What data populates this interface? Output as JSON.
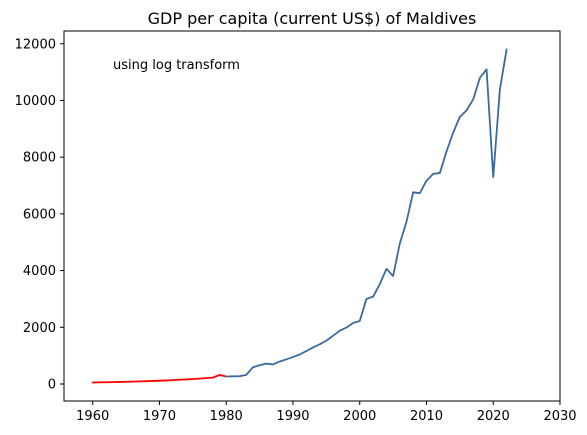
{
  "chart_data": {
    "type": "line",
    "title": "GDP per capita (current US$) of Maldives",
    "annotation": "using log transform",
    "xlabel": "",
    "ylabel": "",
    "xlim": [
      1955.7,
      2030
    ],
    "ylim": [
      -600,
      12450
    ],
    "x_ticks": [
      1960,
      1970,
      1980,
      1990,
      2000,
      2010,
      2020,
      2030
    ],
    "y_ticks": [
      0,
      2000,
      4000,
      6000,
      8000,
      10000,
      12000
    ],
    "grid": false,
    "legend": "none",
    "series": [
      {
        "color": "#ff0000",
        "points": [
          [
            1960,
            52
          ],
          [
            1961,
            56
          ],
          [
            1962,
            61
          ],
          [
            1963,
            66
          ],
          [
            1964,
            72
          ],
          [
            1965,
            78
          ],
          [
            1966,
            84
          ],
          [
            1967,
            91
          ],
          [
            1968,
            99
          ],
          [
            1969,
            107
          ],
          [
            1970,
            116
          ],
          [
            1971,
            126
          ],
          [
            1972,
            137
          ],
          [
            1973,
            149
          ],
          [
            1974,
            161
          ],
          [
            1975,
            175
          ],
          [
            1976,
            190
          ],
          [
            1977,
            206
          ],
          [
            1978,
            224
          ],
          [
            1979,
            320
          ],
          [
            1980,
            265
          ]
        ]
      },
      {
        "color": "#3a6aa0",
        "points": [
          [
            1980,
            265
          ],
          [
            1981,
            270
          ],
          [
            1982,
            275
          ],
          [
            1983,
            320
          ],
          [
            1984,
            590
          ],
          [
            1985,
            660
          ],
          [
            1986,
            720
          ],
          [
            1987,
            690
          ],
          [
            1988,
            790
          ],
          [
            1989,
            870
          ],
          [
            1990,
            950
          ],
          [
            1991,
            1040
          ],
          [
            1992,
            1160
          ],
          [
            1993,
            1290
          ],
          [
            1994,
            1400
          ],
          [
            1995,
            1530
          ],
          [
            1996,
            1700
          ],
          [
            1997,
            1880
          ],
          [
            1998,
            1990
          ],
          [
            1999,
            2150
          ],
          [
            2000,
            2220
          ],
          [
            2001,
            3000
          ],
          [
            2002,
            3080
          ],
          [
            2003,
            3520
          ],
          [
            2004,
            4060
          ],
          [
            2005,
            3810
          ],
          [
            2006,
            4950
          ],
          [
            2007,
            5720
          ],
          [
            2008,
            6760
          ],
          [
            2009,
            6730
          ],
          [
            2010,
            7170
          ],
          [
            2011,
            7410
          ],
          [
            2012,
            7440
          ],
          [
            2013,
            8200
          ],
          [
            2014,
            8870
          ],
          [
            2015,
            9420
          ],
          [
            2016,
            9650
          ],
          [
            2017,
            10040
          ],
          [
            2018,
            10800
          ],
          [
            2019,
            11100
          ],
          [
            2020,
            7300
          ],
          [
            2021,
            10400
          ],
          [
            2022,
            11800
          ]
        ]
      }
    ]
  }
}
